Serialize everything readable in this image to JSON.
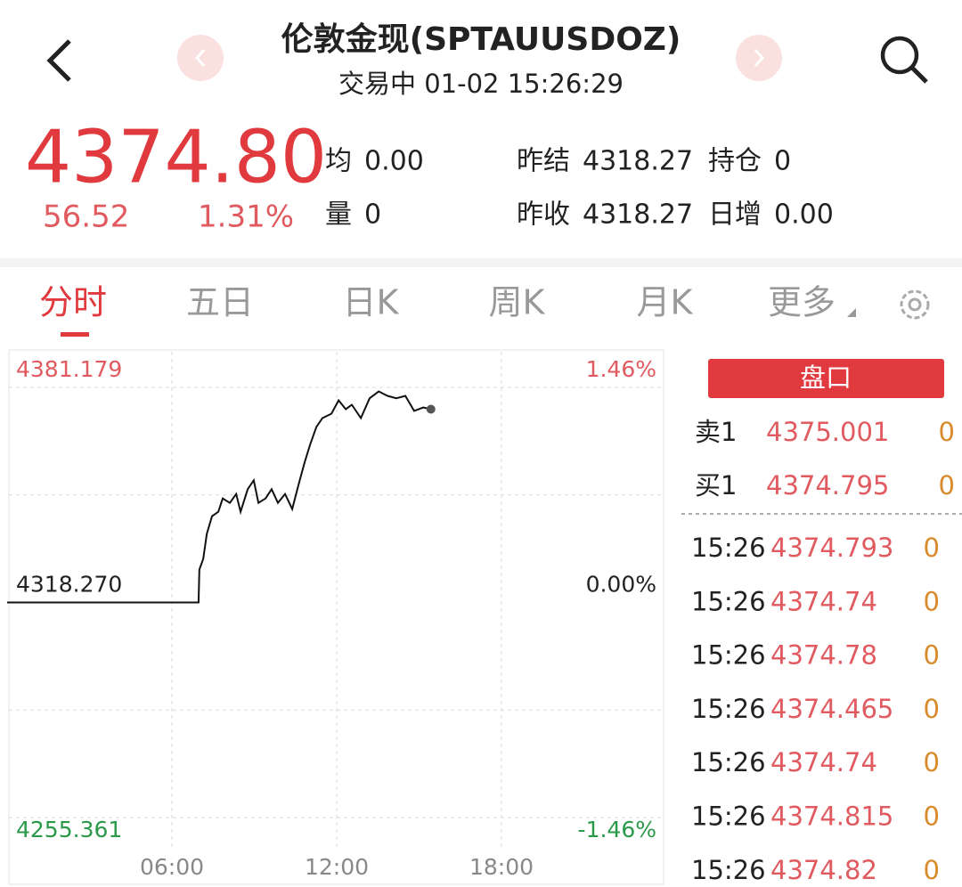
{
  "header": {
    "title": "伦敦金现(SPTAUUSDOZ)",
    "status": "交易中 01-02 15:26:29"
  },
  "quote": {
    "price": "4374.80",
    "change": "56.52",
    "change_pct": "1.31%",
    "stats": [
      {
        "label": "均",
        "value": "0.00"
      },
      {
        "label": "量",
        "value": "0"
      },
      {
        "label": "昨结",
        "value": "4318.27"
      },
      {
        "label": "昨收",
        "value": "4318.27"
      },
      {
        "label": "持仓",
        "value": "0"
      },
      {
        "label": "日增",
        "value": "0.00"
      }
    ]
  },
  "tabs": [
    "分时",
    "五日",
    "日K",
    "周K",
    "月K",
    "更多"
  ],
  "chart_data": {
    "type": "line",
    "x": [
      0,
      6.97,
      7.0,
      7.14,
      7.27,
      7.46,
      7.69,
      7.85,
      8.11,
      8.34,
      8.5,
      8.76,
      8.98,
      9.15,
      9.41,
      9.63,
      9.86,
      10.12,
      10.38,
      10.61,
      10.83,
      11.03,
      11.26,
      11.48,
      11.81,
      12.07,
      12.33,
      12.55,
      12.88,
      13.2,
      13.53,
      13.85,
      14.17,
      14.5,
      14.82,
      15.15,
      15.43
    ],
    "series": [
      {
        "color": "#111111",
        "values": [
          4318.27,
          4318.27,
          4327.9,
          4331.0,
          4338.3,
          4343.5,
          4344.8,
          4348.7,
          4347.4,
          4350.0,
          4344.8,
          4351.4,
          4354.0,
          4347.4,
          4348.7,
          4351.4,
          4347.4,
          4350.0,
          4345.6,
          4352.7,
          4359.2,
          4364.4,
          4369.6,
          4372.2,
          4373.5,
          4377.4,
          4374.8,
          4376.1,
          4372.2,
          4378.0,
          4380.0,
          4378.7,
          4378.0,
          4378.7,
          4374.3,
          4375.3,
          4374.8
        ]
      }
    ],
    "xlim": [
      0,
      24
    ],
    "xticks": [
      {
        "value": 6,
        "label": "06:00"
      },
      {
        "value": 12,
        "label": "12:00"
      },
      {
        "value": 18,
        "label": "18:00"
      }
    ],
    "ylim": [
      4255.361,
      4381.179
    ],
    "yticks": [
      4381.179,
      {
        "value": 4349.72,
        "label": null
      },
      {
        "value": 4318.27,
        "label": "4318.270"
      },
      {
        "value": 4286.82,
        "label": null
      },
      4255.361
    ],
    "y2lim": [
      -1.46,
      1.46
    ],
    "y2ticks": [
      {
        "value": 1.46,
        "label": "1.46%"
      },
      {
        "value": 0,
        "label": "0.00%"
      },
      {
        "value": -1.46,
        "label": "-1.46%"
      }
    ],
    "grid": true
  },
  "panel": {
    "title": "盘口",
    "orderbook": [
      {
        "label": "卖1",
        "price": "4375.001",
        "volume": "0"
      },
      {
        "label": "买1",
        "price": "4374.795",
        "volume": "0"
      }
    ],
    "trades": [
      {
        "time": "15:26",
        "price": "4374.793",
        "volume": "0"
      },
      {
        "time": "15:26",
        "price": "4374.74",
        "volume": "0"
      },
      {
        "time": "15:26",
        "price": "4374.78",
        "volume": "0"
      },
      {
        "time": "15:26",
        "price": "4374.465",
        "volume": "0"
      },
      {
        "time": "15:26",
        "price": "4374.74",
        "volume": "0"
      },
      {
        "time": "15:26",
        "price": "4374.815",
        "volume": "0"
      },
      {
        "time": "15:26",
        "price": "4374.82",
        "volume": "0"
      }
    ]
  }
}
